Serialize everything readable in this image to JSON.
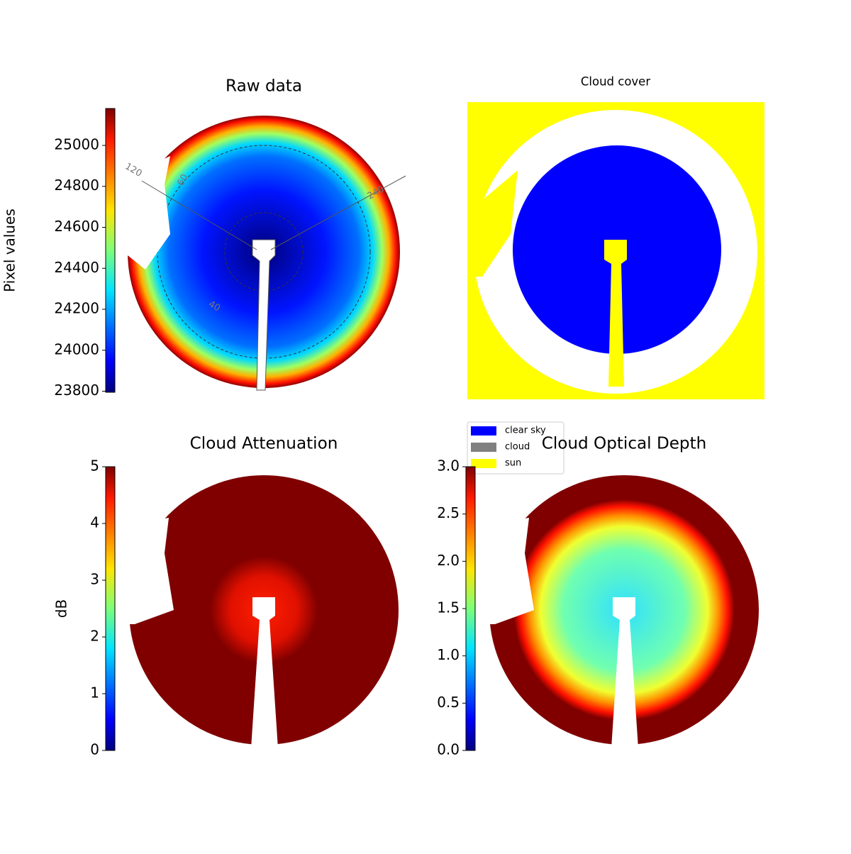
{
  "chart_data": [
    {
      "type": "heatmap",
      "title": "Raw data",
      "colormap": "jet",
      "colorbar_label": "Pixel values",
      "ylim": [
        23795,
        25180
      ],
      "yticks": [
        23800,
        24000,
        24200,
        24400,
        24600,
        24800,
        25000
      ],
      "annotations": [
        "120",
        "60",
        "240",
        "40"
      ]
    },
    {
      "type": "categorical",
      "title": "Cloud cover",
      "series": [
        {
          "name": "clear sky",
          "color": "#0000ff"
        },
        {
          "name": "cloud",
          "color": "#808080"
        },
        {
          "name": "sun",
          "color": "#ffff00"
        }
      ]
    },
    {
      "type": "heatmap",
      "title": "Cloud Attenuation",
      "colormap": "jet",
      "colorbar_label": "dB",
      "ylim": [
        0,
        5
      ],
      "yticks": [
        0,
        1,
        2,
        3,
        4,
        5
      ]
    },
    {
      "type": "heatmap",
      "title": "Cloud Optical Depth",
      "colormap": "jet",
      "ylim": [
        0,
        3
      ],
      "yticks": [
        {
          "value": 0,
          "label": "0.0"
        },
        {
          "value": 0.5,
          "label": "0.5"
        },
        {
          "value": 1,
          "label": "1.0"
        },
        {
          "value": 1.5,
          "label": "1.5"
        },
        {
          "value": 2,
          "label": "2.0"
        },
        {
          "value": 2.5,
          "label": "2.5"
        },
        {
          "value": 3,
          "label": "3.0"
        }
      ]
    }
  ]
}
